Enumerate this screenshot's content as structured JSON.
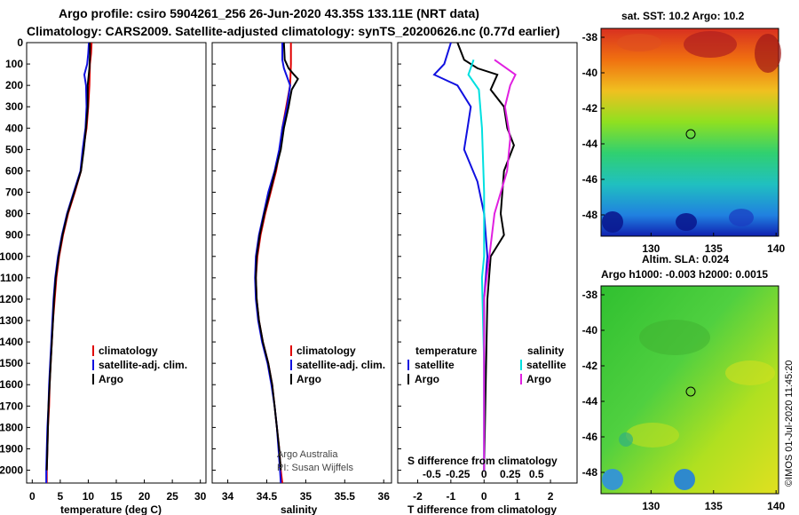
{
  "header": {
    "line1": "Argo profile: csiro 5904261_256 26-Jun-2020 43.35S 133.11E (NRT data)",
    "line2": "Climatology: CARS2009. Satellite-adjusted climatology: synTS_20200626.nc (0.77d earlier)"
  },
  "colors": {
    "climatology": "#e00000",
    "satellite": "#1010e0",
    "argo": "#000000",
    "sal_satellite": "#00e0e0",
    "sal_argo": "#e020e0"
  },
  "chart_data": [
    {
      "type": "line",
      "title": "temperature profile",
      "xlabel": "temperature (deg C)",
      "ylabel": "depth",
      "xlim": [
        -1,
        31
      ],
      "ylim": [
        2060,
        0
      ],
      "xticks": [
        "0",
        "5",
        "10",
        "15",
        "20",
        "25",
        "30"
      ],
      "yticks": [
        "0",
        "100",
        "200",
        "300",
        "400",
        "500",
        "600",
        "700",
        "800",
        "900",
        "1000",
        "1100",
        "1200",
        "1300",
        "1400",
        "1500",
        "1600",
        "1700",
        "1800",
        "1900",
        "2000"
      ],
      "legend": [
        "climatology",
        "satellite-adj. clim.",
        "Argo"
      ],
      "series": [
        {
          "name": "climatology",
          "color": "#e00000",
          "values": [
            [
              10.6,
              0
            ],
            [
              10.5,
              50
            ],
            [
              10.3,
              100
            ],
            [
              10.2,
              200
            ],
            [
              10.0,
              300
            ],
            [
              9.7,
              400
            ],
            [
              9.1,
              500
            ],
            [
              8.7,
              600
            ],
            [
              7.6,
              700
            ],
            [
              6.4,
              800
            ],
            [
              5.5,
              900
            ],
            [
              4.8,
              1000
            ],
            [
              4.3,
              1100
            ],
            [
              4.0,
              1200
            ],
            [
              3.7,
              1300
            ],
            [
              3.5,
              1400
            ],
            [
              3.3,
              1500
            ],
            [
              3.1,
              1600
            ],
            [
              3.0,
              1700
            ],
            [
              2.8,
              1800
            ],
            [
              2.7,
              1900
            ],
            [
              2.6,
              2000
            ],
            [
              2.6,
              2060
            ]
          ]
        },
        {
          "name": "satellite-adj. clim.",
          "color": "#1010e0",
          "values": [
            [
              10.1,
              0
            ],
            [
              10.0,
              50
            ],
            [
              9.8,
              100
            ],
            [
              9.3,
              150
            ],
            [
              9.6,
              200
            ],
            [
              9.7,
              300
            ],
            [
              9.5,
              400
            ],
            [
              9.0,
              500
            ],
            [
              8.6,
              600
            ],
            [
              7.4,
              700
            ],
            [
              6.2,
              800
            ],
            [
              5.3,
              900
            ],
            [
              4.6,
              1000
            ],
            [
              4.1,
              1100
            ],
            [
              3.8,
              1200
            ],
            [
              3.6,
              1300
            ],
            [
              3.4,
              1400
            ],
            [
              3.2,
              1500
            ],
            [
              3.0,
              1600
            ],
            [
              2.9,
              1700
            ],
            [
              2.7,
              1800
            ],
            [
              2.6,
              1900
            ],
            [
              2.5,
              2000
            ],
            [
              2.5,
              2060
            ]
          ]
        },
        {
          "name": "Argo",
          "color": "#000000",
          "values": [
            [
              10.3,
              0
            ],
            [
              10.3,
              60
            ],
            [
              10.2,
              120
            ],
            [
              9.9,
              200
            ],
            [
              9.9,
              300
            ],
            [
              9.6,
              400
            ],
            [
              9.2,
              500
            ],
            [
              8.7,
              600
            ],
            [
              7.5,
              700
            ],
            [
              6.3,
              800
            ],
            [
              5.4,
              900
            ],
            [
              4.7,
              1000
            ],
            [
              4.2,
              1100
            ],
            [
              3.9,
              1200
            ],
            [
              3.7,
              1300
            ],
            [
              3.5,
              1400
            ],
            [
              3.3,
              1500
            ],
            [
              3.1,
              1600
            ],
            [
              2.9,
              1700
            ],
            [
              2.8,
              1800
            ],
            [
              2.7,
              1900
            ],
            [
              2.6,
              2000
            ]
          ]
        }
      ]
    },
    {
      "type": "line",
      "title": "salinity profile",
      "xlabel": "salinity",
      "ylabel": "depth",
      "xlim": [
        33.8,
        36.1
      ],
      "ylim": [
        2060,
        0
      ],
      "xticks": [
        "34",
        "34.5",
        "35",
        "35.5",
        "36"
      ],
      "legend": [
        "climatology",
        "satellite-adj. clim.",
        "Argo"
      ],
      "annotations": [
        "Argo Australia",
        "PI: Susan Wijffels"
      ],
      "series": [
        {
          "name": "climatology",
          "color": "#e00000",
          "values": [
            [
              34.81,
              0
            ],
            [
              34.81,
              100
            ],
            [
              34.8,
              200
            ],
            [
              34.75,
              300
            ],
            [
              34.7,
              400
            ],
            [
              34.67,
              500
            ],
            [
              34.62,
              600
            ],
            [
              34.55,
              700
            ],
            [
              34.48,
              800
            ],
            [
              34.42,
              900
            ],
            [
              34.38,
              1000
            ],
            [
              34.36,
              1100
            ],
            [
              34.37,
              1200
            ],
            [
              34.4,
              1300
            ],
            [
              34.45,
              1400
            ],
            [
              34.52,
              1500
            ],
            [
              34.57,
              1600
            ],
            [
              34.6,
              1700
            ],
            [
              34.63,
              1800
            ],
            [
              34.66,
              1900
            ],
            [
              34.68,
              2000
            ],
            [
              34.7,
              2060
            ]
          ]
        },
        {
          "name": "satellite-adj. clim.",
          "color": "#1010e0",
          "values": [
            [
              34.7,
              0
            ],
            [
              34.7,
              80
            ],
            [
              34.72,
              120
            ],
            [
              34.76,
              160
            ],
            [
              34.8,
              200
            ],
            [
              34.76,
              300
            ],
            [
              34.7,
              400
            ],
            [
              34.66,
              500
            ],
            [
              34.6,
              600
            ],
            [
              34.52,
              700
            ],
            [
              34.46,
              800
            ],
            [
              34.4,
              900
            ],
            [
              34.36,
              1000
            ],
            [
              34.35,
              1100
            ],
            [
              34.36,
              1200
            ],
            [
              34.39,
              1300
            ],
            [
              34.44,
              1400
            ],
            [
              34.51,
              1500
            ],
            [
              34.56,
              1600
            ],
            [
              34.6,
              1700
            ],
            [
              34.63,
              1800
            ],
            [
              34.65,
              1900
            ],
            [
              34.67,
              2000
            ],
            [
              34.68,
              2060
            ]
          ]
        },
        {
          "name": "Argo",
          "color": "#000000",
          "values": [
            [
              34.72,
              0
            ],
            [
              34.73,
              80
            ],
            [
              34.78,
              120
            ],
            [
              34.85,
              150
            ],
            [
              34.9,
              170
            ],
            [
              34.82,
              220
            ],
            [
              34.8,
              260
            ],
            [
              34.78,
              300
            ],
            [
              34.72,
              400
            ],
            [
              34.68,
              500
            ],
            [
              34.61,
              600
            ],
            [
              34.54,
              700
            ],
            [
              34.47,
              800
            ],
            [
              34.41,
              900
            ],
            [
              34.37,
              1000
            ],
            [
              34.36,
              1100
            ],
            [
              34.37,
              1200
            ],
            [
              34.4,
              1300
            ],
            [
              34.45,
              1400
            ],
            [
              34.52,
              1500
            ],
            [
              34.57,
              1600
            ],
            [
              34.6,
              1700
            ],
            [
              34.63,
              1800
            ],
            [
              34.66,
              1900
            ],
            [
              34.68,
              2000
            ]
          ]
        }
      ]
    },
    {
      "type": "line",
      "title": "difference from climatology",
      "xlabel": "T difference from climatology",
      "xlabel2": "S difference from climatology",
      "xlim": [
        -2.6,
        2.8
      ],
      "ylim": [
        2060,
        0
      ],
      "xticks": [
        "-2",
        "-1",
        "0",
        "1",
        "2"
      ],
      "xticks2": [
        "-0.5",
        "-0.25",
        "0",
        "0.25",
        "0.5"
      ],
      "legend_headers": [
        "temperature",
        "salinity"
      ],
      "legend": [
        "satellite",
        "Argo",
        "satellite",
        "Argo"
      ],
      "series": [
        {
          "name": "T satellite",
          "color": "#1010e0",
          "values": [
            [
              -1.0,
              0
            ],
            [
              -1.2,
              100
            ],
            [
              -1.5,
              150
            ],
            [
              -0.8,
              200
            ],
            [
              -0.4,
              300
            ],
            [
              -0.5,
              400
            ],
            [
              -0.6,
              500
            ],
            [
              -0.2,
              650
            ],
            [
              0.0,
              800
            ],
            [
              0.1,
              1000
            ],
            [
              0.0,
              1200
            ],
            [
              0.0,
              1600
            ],
            [
              0.0,
              2000
            ]
          ]
        },
        {
          "name": "T Argo",
          "color": "#000000",
          "values": [
            [
              -0.8,
              0
            ],
            [
              -0.6,
              80
            ],
            [
              -0.2,
              120
            ],
            [
              0.4,
              150
            ],
            [
              0.2,
              220
            ],
            [
              0.6,
              300
            ],
            [
              0.7,
              400
            ],
            [
              0.9,
              480
            ],
            [
              0.6,
              600
            ],
            [
              0.5,
              800
            ],
            [
              0.6,
              900
            ],
            [
              0.2,
              1000
            ],
            [
              0.1,
              1200
            ],
            [
              0.05,
              1600
            ],
            [
              0.0,
              2000
            ]
          ]
        },
        {
          "name": "S satellite",
          "color": "#00e0e0",
          "values": [
            [
              -0.1,
              80
            ],
            [
              -0.15,
              150
            ],
            [
              -0.05,
              220
            ],
            [
              -0.02,
              400
            ],
            [
              0.0,
              700
            ],
            [
              0.0,
              1000
            ],
            [
              -0.02,
              1100
            ],
            [
              0.0,
              1500
            ],
            [
              0.0,
              2000
            ]
          ]
        },
        {
          "name": "S Argo",
          "color": "#e020e0",
          "values": [
            [
              0.1,
              80
            ],
            [
              0.3,
              150
            ],
            [
              0.25,
              200
            ],
            [
              0.2,
              300
            ],
            [
              0.25,
              450
            ],
            [
              0.22,
              600
            ],
            [
              0.1,
              800
            ],
            [
              0.05,
              1000
            ],
            [
              0.0,
              1200
            ],
            [
              0.0,
              2000
            ]
          ]
        }
      ]
    },
    {
      "type": "heatmap",
      "title": "sat. SST: 10.2 Argo: 10.2",
      "xticks": [
        "130",
        "135",
        "140"
      ],
      "yticks": [
        "-38",
        "-40",
        "-42",
        "-44",
        "-46",
        "-48"
      ]
    },
    {
      "type": "heatmap",
      "title": "Altim. SLA: 0.024",
      "subtitle": "Argo h1000: -0.003 h2000: 0.0015",
      "xticks": [
        "130",
        "135",
        "140"
      ],
      "yticks": [
        "-38",
        "-40",
        "-42",
        "-44",
        "-46",
        "-48"
      ]
    }
  ],
  "footer": {
    "credit": "©IMOS 01-Jul-2020 11:45:20"
  }
}
